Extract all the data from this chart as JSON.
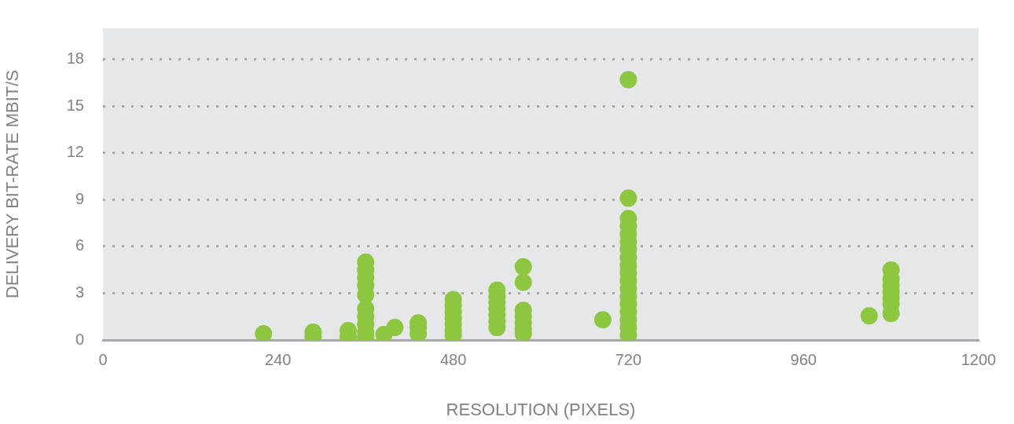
{
  "chart_data": {
    "type": "scatter",
    "xlabel": "RESOLUTION (PIXELS)",
    "ylabel": "DELIVERY BIT-RATE MBIT/S",
    "xlim": [
      0,
      1200
    ],
    "xticks": [
      0,
      240,
      480,
      720,
      960,
      1200
    ],
    "ylim": [
      0,
      20
    ],
    "yticks": [
      0,
      3,
      6,
      9,
      12,
      15,
      18
    ],
    "grid": "y",
    "legend": false,
    "marker": "circle",
    "series": [
      {
        "color": "#8dc63f",
        "x": [
          220,
          288,
          288,
          336,
          336,
          360,
          360,
          360,
          360,
          360,
          360,
          360,
          360,
          360,
          360,
          385,
          400,
          432,
          432,
          432,
          480,
          480,
          480,
          480,
          480,
          480,
          480,
          540,
          540,
          540,
          540,
          540,
          540,
          540,
          576,
          576,
          576,
          576,
          576,
          576,
          576,
          685,
          720,
          720,
          720,
          720,
          720,
          720,
          720,
          720,
          720,
          720,
          720,
          720,
          720,
          720,
          720,
          720,
          720,
          720,
          1050,
          1080,
          1080,
          1080,
          1080,
          1080,
          1080,
          1080
        ],
        "values": [
          0.4,
          0.2,
          0.5,
          0.2,
          0.6,
          5.0,
          4.5,
          4.0,
          3.5,
          2.9,
          2.0,
          1.5,
          1.0,
          0.5,
          0.2,
          0.35,
          0.8,
          1.1,
          0.8,
          0.4,
          2.6,
          2.2,
          1.8,
          1.4,
          1.0,
          0.6,
          0.3,
          3.2,
          2.8,
          2.4,
          2.0,
          1.6,
          1.2,
          0.8,
          4.7,
          3.7,
          1.9,
          1.5,
          1.1,
          0.7,
          0.4,
          1.3,
          16.7,
          9.1,
          7.8,
          7.3,
          6.8,
          6.3,
          5.8,
          5.3,
          4.8,
          4.3,
          3.8,
          3.3,
          2.8,
          2.3,
          1.8,
          1.3,
          0.8,
          0.3,
          1.55,
          4.5,
          3.9,
          3.5,
          3.1,
          2.7,
          2.3,
          1.7
        ]
      }
    ]
  }
}
